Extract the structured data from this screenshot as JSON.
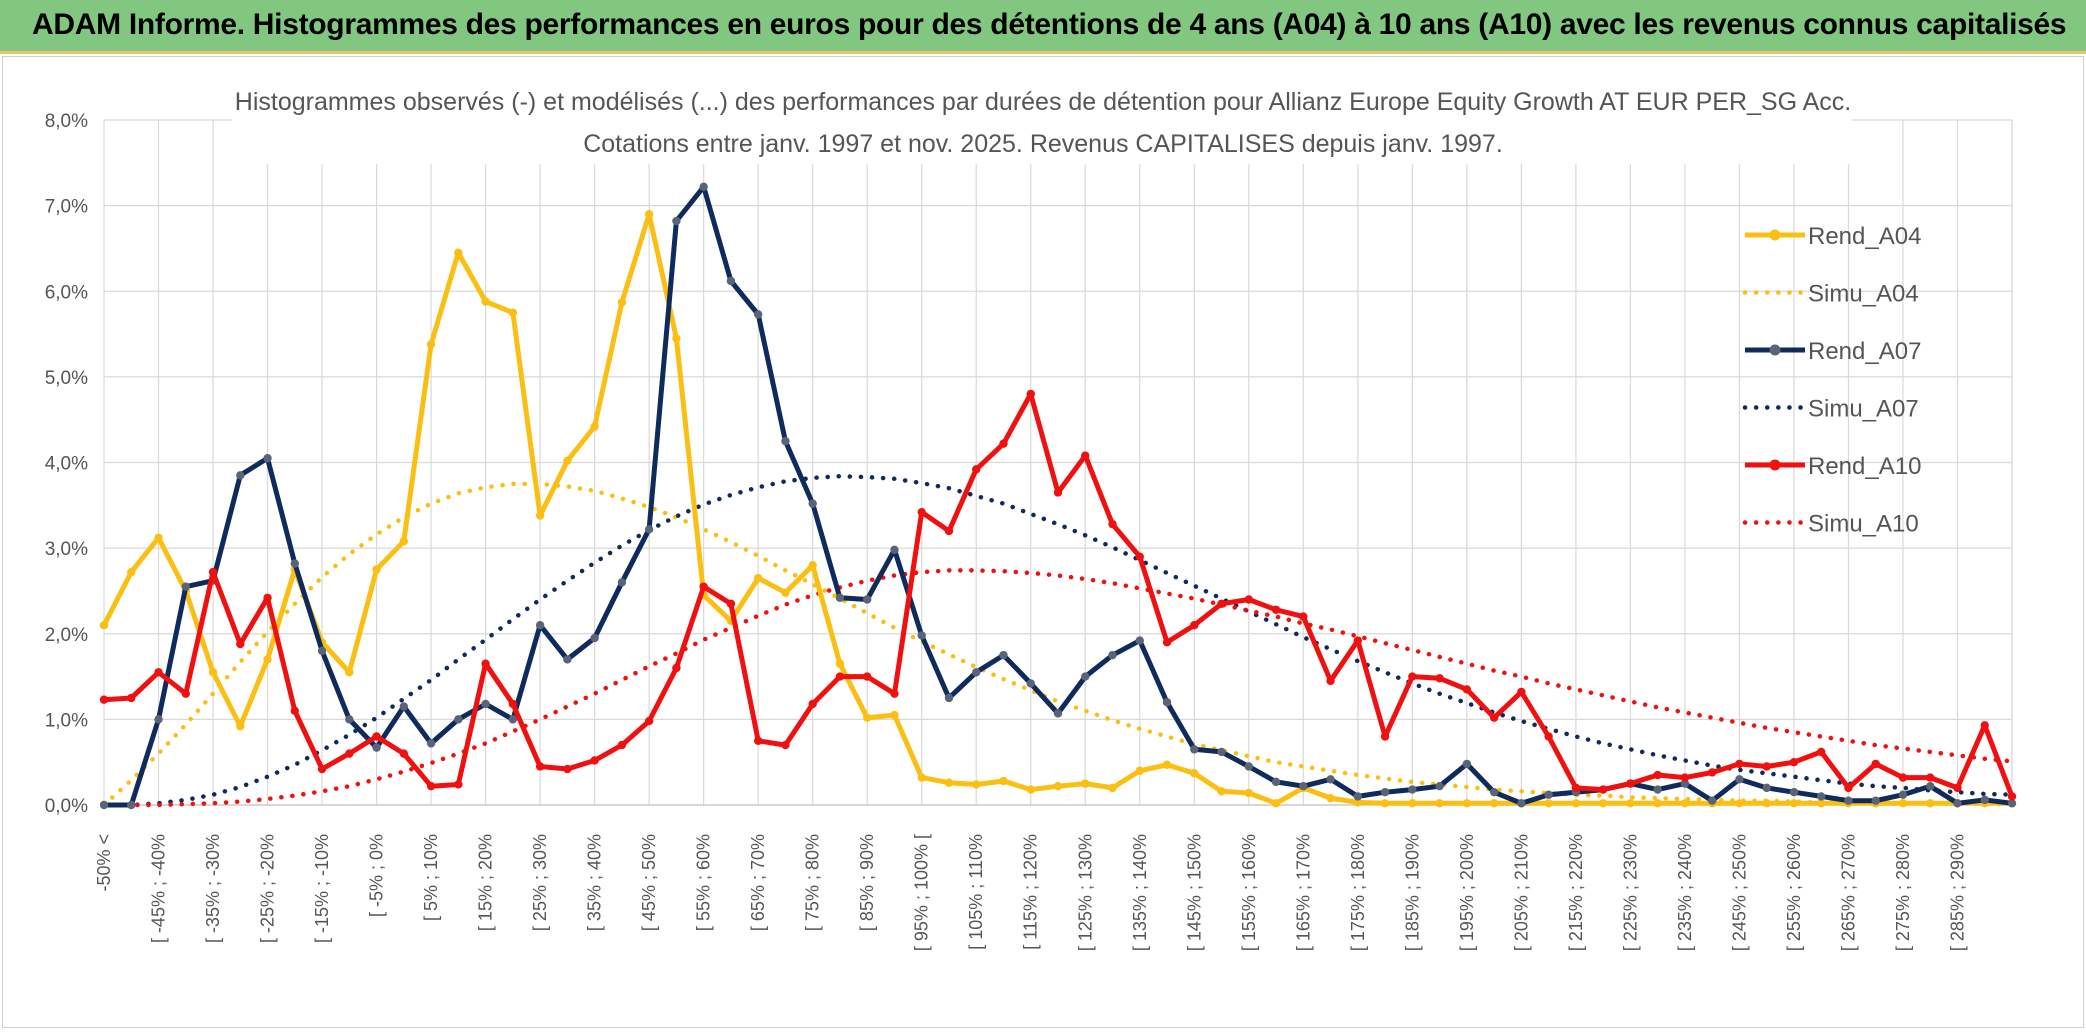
{
  "banner": {
    "title": "ADAM Informe. Histogrammes des performances en euros pour des détentions de 4 ans (A04) à 10 ans (A10) avec les revenus connus capitalisés"
  },
  "colors": {
    "banner_bg": "#82c77f",
    "A04": "#fbbf13",
    "A07": "#0f2a5c",
    "A10": "#f01010"
  },
  "chart_data": {
    "type": "line",
    "title": "Histogrammes observés (-) et modélisés (...) des performances par durées de détention pour Allianz Europe Equity Growth AT EUR PER_SG Acc.",
    "subtitle": "Cotations entre janv. 1997 et nov. 2025. Revenus CAPITALISES depuis janv. 1997.",
    "ylim": [
      0,
      8
    ],
    "yticks": [
      "0,0%",
      "1,0%",
      "2,0%",
      "3,0%",
      "4,0%",
      "5,0%",
      "6,0%",
      "7,0%",
      "8,0%"
    ],
    "grid": true,
    "legend_position": "right",
    "x_labels": [
      "-50% <",
      "[ -45% ; -40%",
      "[ -35% ; -30%",
      "[ -25% ; -20%",
      "[ -15% ; -10%",
      "[ -5% ; 0%",
      "[ 5% ; 10%",
      "[ 15% ; 20%",
      "[ 25% ; 30%",
      "[ 35% ; 40%",
      "[ 45% ; 50%",
      "[ 55% ; 60%",
      "[ 65% ; 70%",
      "[ 75% ; 80%",
      "[ 85% ; 90%",
      "[ 95% ; 100% [",
      "[ 105% ; 110%",
      "[ 115% ; 120%",
      "[ 125% ; 130%",
      "[ 135% ; 140%",
      "[ 145% ; 150%",
      "[ 155% ; 160%",
      "[ 165% ; 170%",
      "[ 175% ; 180%",
      "[ 185% ; 190%",
      "[ 195% ; 200%",
      "[ 205% ; 210%",
      "[ 215% ; 220%",
      "[ 225% ; 230%",
      "[ 235% ; 240%",
      "[ 245% ; 250%",
      "[ 255% ; 260%",
      "[ 265% ; 270%",
      "[ 275% ; 280%",
      "[ 285% ; 290%"
    ],
    "series": [
      {
        "name": "Rend_A04",
        "style": "solid",
        "color": "#fbbf13",
        "values": [
          2.1,
          2.72,
          3.12,
          2.5,
          1.55,
          0.92,
          1.7,
          2.75,
          1.9,
          1.55,
          2.75,
          3.08,
          5.38,
          6.45,
          5.88,
          5.75,
          3.38,
          4.02,
          4.42,
          5.87,
          6.9,
          5.45,
          2.45,
          2.15,
          2.65,
          2.48,
          2.8,
          1.65,
          1.02,
          1.05,
          0.32,
          0.26,
          0.24,
          0.28,
          0.18,
          0.22,
          0.25,
          0.2,
          0.4,
          0.47,
          0.37,
          0.16,
          0.14,
          0.02,
          0.2,
          0.08,
          0.03,
          0.02,
          0.02,
          0.02,
          0.02,
          0.02,
          0.02,
          0.02,
          0.02,
          0.02,
          0.02,
          0.02,
          0.02,
          0.02,
          0.02,
          0.02,
          0.02,
          0.02,
          0.02,
          0.02,
          0.02,
          0.02,
          0.02,
          0.02,
          0.02
        ]
      },
      {
        "name": "Simu_A04",
        "style": "dotted",
        "color": "#fbbf13",
        "values": [
          0.0,
          0.29,
          0.6,
          0.94,
          1.3,
          1.67,
          2.02,
          2.35,
          2.66,
          2.93,
          3.16,
          3.36,
          3.52,
          3.64,
          3.71,
          3.75,
          3.75,
          3.72,
          3.67,
          3.58,
          3.48,
          3.36,
          3.22,
          3.07,
          2.91,
          2.74,
          2.58,
          2.41,
          2.24,
          2.07,
          1.91,
          1.76,
          1.61,
          1.47,
          1.34,
          1.21,
          1.1,
          0.99,
          0.89,
          0.8,
          0.71,
          0.64,
          0.57,
          0.5,
          0.45,
          0.4,
          0.35,
          0.31,
          0.27,
          0.24,
          0.21,
          0.18,
          0.16,
          0.14,
          0.12,
          0.11,
          0.09,
          0.08,
          0.07,
          0.06,
          0.05,
          0.05,
          0.04,
          0.03,
          0.03,
          0.03,
          0.02,
          0.02,
          0.02,
          0.01,
          0.01
        ]
      },
      {
        "name": "Rend_A07",
        "style": "solid-markers",
        "color": "#0f2a5c",
        "values": [
          0.0,
          0.0,
          1.0,
          2.55,
          2.62,
          3.85,
          4.05,
          2.82,
          1.8,
          1.0,
          0.67,
          1.15,
          0.72,
          1.0,
          1.18,
          1.0,
          2.1,
          1.7,
          1.95,
          2.6,
          3.22,
          6.82,
          7.22,
          6.12,
          5.73,
          4.25,
          3.52,
          2.42,
          2.4,
          2.98,
          1.98,
          1.25,
          1.55,
          1.75,
          1.42,
          1.07,
          1.5,
          1.75,
          1.92,
          1.2,
          0.65,
          0.62,
          0.45,
          0.27,
          0.22,
          0.3,
          0.1,
          0.15,
          0.18,
          0.22,
          0.48,
          0.15,
          0.02,
          0.12,
          0.15,
          0.18,
          0.25,
          0.18,
          0.25,
          0.05,
          0.3,
          0.2,
          0.15,
          0.1,
          0.05,
          0.05,
          0.12,
          0.22,
          0.02,
          0.06,
          0.02
        ]
      },
      {
        "name": "Simu_A07",
        "style": "dotted",
        "color": "#0f2a5c",
        "values": [
          0.0,
          0.0,
          0.02,
          0.06,
          0.12,
          0.21,
          0.33,
          0.47,
          0.64,
          0.82,
          1.02,
          1.24,
          1.46,
          1.7,
          1.93,
          2.17,
          2.4,
          2.62,
          2.83,
          3.03,
          3.21,
          3.37,
          3.51,
          3.62,
          3.71,
          3.78,
          3.82,
          3.84,
          3.83,
          3.81,
          3.76,
          3.7,
          3.61,
          3.52,
          3.4,
          3.28,
          3.15,
          3.01,
          2.86,
          2.71,
          2.56,
          2.41,
          2.26,
          2.11,
          1.96,
          1.82,
          1.68,
          1.55,
          1.42,
          1.3,
          1.19,
          1.08,
          0.98,
          0.89,
          0.8,
          0.72,
          0.65,
          0.58,
          0.52,
          0.46,
          0.41,
          0.37,
          0.33,
          0.29,
          0.25,
          0.22,
          0.2,
          0.17,
          0.15,
          0.13,
          0.12
        ]
      },
      {
        "name": "Rend_A10",
        "style": "solid",
        "color": "#f01010",
        "values": [
          1.23,
          1.25,
          1.55,
          1.3,
          2.72,
          1.88,
          2.42,
          1.1,
          0.42,
          0.6,
          0.8,
          0.6,
          0.22,
          0.24,
          1.65,
          1.18,
          0.45,
          0.42,
          0.52,
          0.7,
          0.98,
          1.6,
          2.55,
          2.35,
          0.75,
          0.7,
          1.18,
          1.5,
          1.5,
          1.3,
          3.42,
          3.2,
          3.92,
          4.22,
          4.8,
          3.65,
          4.08,
          3.28,
          2.9,
          1.9,
          2.1,
          2.35,
          2.4,
          2.28,
          2.2,
          1.45,
          1.92,
          0.8,
          1.5,
          1.48,
          1.35,
          1.02,
          1.32,
          0.8,
          0.2,
          0.18,
          0.25,
          0.35,
          0.32,
          0.38,
          0.48,
          0.45,
          0.5,
          0.62,
          0.2,
          0.48,
          0.32,
          0.32,
          0.2,
          0.93,
          0.1
        ]
      },
      {
        "name": "Simu_A10",
        "style": "dotted",
        "color": "#f01010",
        "values": [
          0.0,
          0.0,
          0.0,
          0.01,
          0.02,
          0.04,
          0.07,
          0.11,
          0.16,
          0.22,
          0.3,
          0.39,
          0.49,
          0.6,
          0.72,
          0.86,
          1.0,
          1.15,
          1.3,
          1.46,
          1.62,
          1.77,
          1.93,
          2.07,
          2.21,
          2.34,
          2.45,
          2.54,
          2.62,
          2.68,
          2.72,
          2.74,
          2.74,
          2.73,
          2.71,
          2.68,
          2.64,
          2.59,
          2.53,
          2.47,
          2.41,
          2.34,
          2.27,
          2.2,
          2.12,
          2.05,
          1.97,
          1.89,
          1.81,
          1.73,
          1.65,
          1.57,
          1.5,
          1.42,
          1.35,
          1.28,
          1.21,
          1.14,
          1.08,
          1.02,
          0.96,
          0.9,
          0.85,
          0.8,
          0.75,
          0.7,
          0.66,
          0.62,
          0.58,
          0.54,
          0.51
        ]
      }
    ]
  }
}
